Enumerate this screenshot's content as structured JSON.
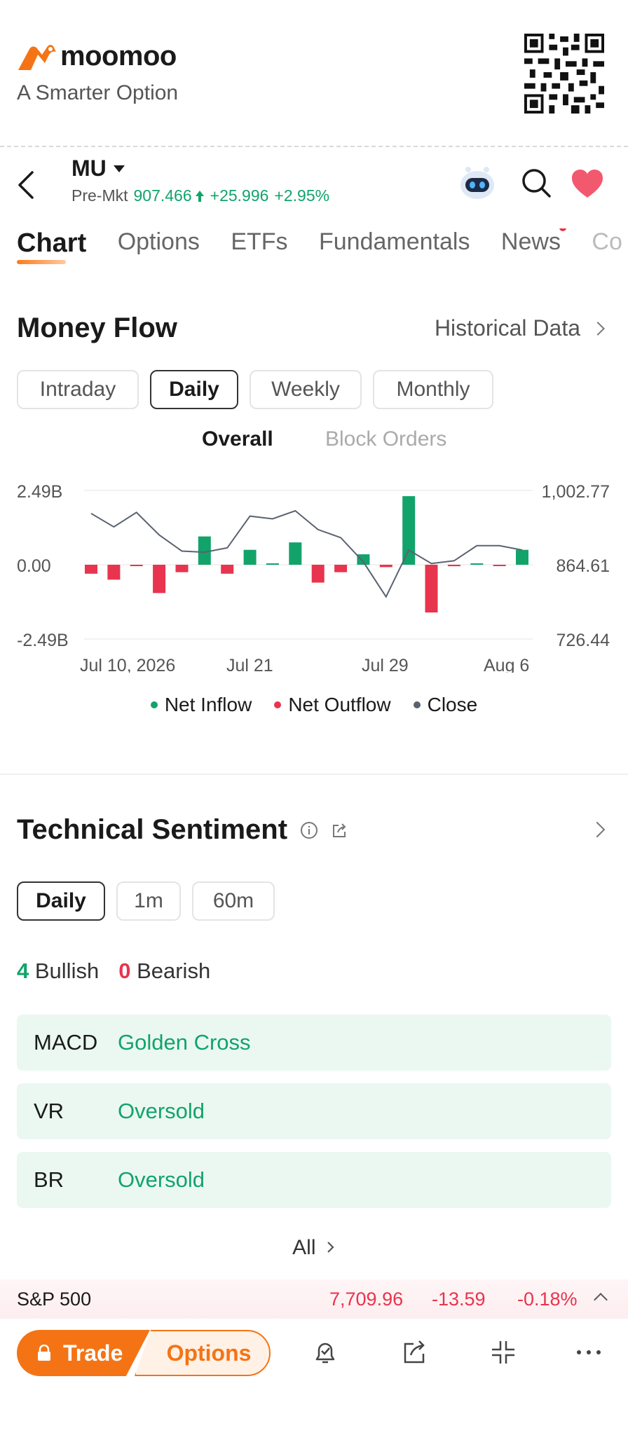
{
  "brand": {
    "name": "moomoo",
    "tagline": "A Smarter Option",
    "accent": "#f47415"
  },
  "stock": {
    "ticker": "MU",
    "session_label": "Pre-Mkt",
    "price": "907.466",
    "change": "+25.996",
    "change_pct": "+2.95%",
    "up_color": "#12a36b"
  },
  "tabs": [
    {
      "label": "Chart"
    },
    {
      "label": "Options"
    },
    {
      "label": "ETFs"
    },
    {
      "label": "Fundamentals"
    },
    {
      "label": "News"
    },
    {
      "label": "Co"
    }
  ],
  "money_flow": {
    "title": "Money Flow",
    "historical_label": "Historical Data",
    "periods": [
      "Intraday",
      "Daily",
      "Weekly",
      "Monthly"
    ],
    "selected_period": "Daily",
    "views": [
      "Overall",
      "Block Orders"
    ],
    "selected_view": "Overall"
  },
  "chart_data": {
    "type": "bar",
    "left_axis_ticks": [
      "2.49B",
      "0.00",
      "-2.49B"
    ],
    "right_axis_ticks": [
      "1,002.77",
      "864.61",
      "726.44"
    ],
    "x_tick_labels": [
      "Jul 10, 2026",
      "Jul 21",
      "Jul 29",
      "Aug 6"
    ],
    "ylim_left": [
      -2.49,
      2.49
    ],
    "ylim_right": [
      726.44,
      1002.77
    ],
    "series": [
      {
        "name": "Net Inflow",
        "color": "#12a36b"
      },
      {
        "name": "Net Outflow",
        "color": "#e8344e"
      },
      {
        "name": "Close",
        "color": "#5a6270"
      }
    ],
    "net_flow_billions": [
      -0.3,
      -0.5,
      -0.04,
      -0.95,
      -0.25,
      0.95,
      -0.3,
      0.5,
      0.04,
      0.75,
      -0.6,
      -0.25,
      0.35,
      -0.08,
      2.3,
      -1.6,
      -0.05,
      0.04,
      -0.04,
      0.5
    ],
    "close": [
      960,
      935,
      962,
      920,
      890,
      888,
      896,
      955,
      950,
      965,
      930,
      915,
      870,
      805,
      892,
      867,
      872,
      900,
      900,
      892
    ],
    "grid": true
  },
  "technical_sentiment": {
    "title": "Technical Sentiment",
    "periods": [
      "Daily",
      "1m",
      "60m"
    ],
    "selected_period": "Daily",
    "bullish_count": "4",
    "bullish_label": "Bullish",
    "bearish_count": "0",
    "bearish_label": "Bearish",
    "indicators": [
      {
        "name": "MACD",
        "signal": "Golden Cross"
      },
      {
        "name": "VR",
        "signal": "Oversold"
      },
      {
        "name": "BR",
        "signal": "Oversold"
      }
    ],
    "all_label": "All"
  },
  "index_bar": {
    "name": "S&P 500",
    "price": "7,709.96",
    "change": "-13.59",
    "change_pct": "-0.18%",
    "down_color": "#e8344e"
  },
  "bottom_bar": {
    "trade_label": "Trade",
    "options_label": "Options",
    "icons": [
      "alert-icon",
      "share-icon",
      "collapse-icon",
      "more-icon"
    ]
  }
}
